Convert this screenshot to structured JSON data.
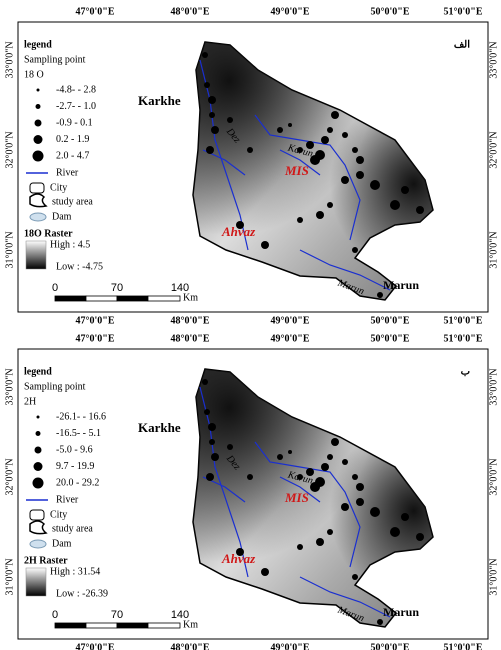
{
  "panels": [
    {
      "panel_label": "الف",
      "legend_title": "legend",
      "sampling_label": "Sampling point",
      "variable": "18 O",
      "classes": [
        "-4.8- - 2.8",
        "-2.7- - 1.0",
        "-0.9 - 0.1",
        "0.2 - 1.9",
        "2.0 - 4.7"
      ],
      "river": "River",
      "city": "City",
      "study_area": "study area",
      "dam": "Dam",
      "raster_title": "18O Raster",
      "high": "High : 4.5",
      "low": "Low : -4.75",
      "scale": [
        "0",
        "70",
        "140"
      ],
      "scale_unit": "Km",
      "lon_labels": [
        "47°0'0\"E",
        "48°0'0\"E",
        "49°0'0\"E",
        "50°0'0\"E",
        "51°0'0\"E"
      ],
      "lat_labels": [
        "33°0'0\"N",
        "32°0'0\"N",
        "31°0'0\"N"
      ],
      "places": {
        "karkhe": "Karkhe",
        "mis": "MIS",
        "ahvaz": "Ahvaz",
        "marun_river": "Marun",
        "marun": "Marun",
        "dez": "Dez",
        "karun": "Karun"
      }
    },
    {
      "panel_label": "ب",
      "legend_title": "legend",
      "sampling_label": "Sampling point",
      "variable": "2H",
      "classes": [
        "-26.1- - 16.6",
        "-16.5- - 5.1",
        "-5.0 - 9.6",
        "9.7 - 19.9",
        "20.0 - 29.2"
      ],
      "river": "River",
      "city": "City",
      "study_area": "study area",
      "dam": "Dam",
      "raster_title": "2H Raster",
      "high": "High : 31.54",
      "low": "Low : -26.39",
      "scale": [
        "0",
        "70",
        "140"
      ],
      "scale_unit": "Km",
      "lon_labels": [
        "47°0'0\"E",
        "48°0'0\"E",
        "49°0'0\"E",
        "50°0'0\"E",
        "51°0'0\"E"
      ],
      "lat_labels": [
        "33°0'0\"N",
        "32°0'0\"N",
        "31°0'0\"N"
      ],
      "places": {
        "karkhe": "Karkhe",
        "mis": "MIS",
        "ahvaz": "Ahvaz",
        "marun_river": "Marun",
        "marun": "Marun",
        "dez": "Dez",
        "karun": "Karun"
      }
    }
  ]
}
